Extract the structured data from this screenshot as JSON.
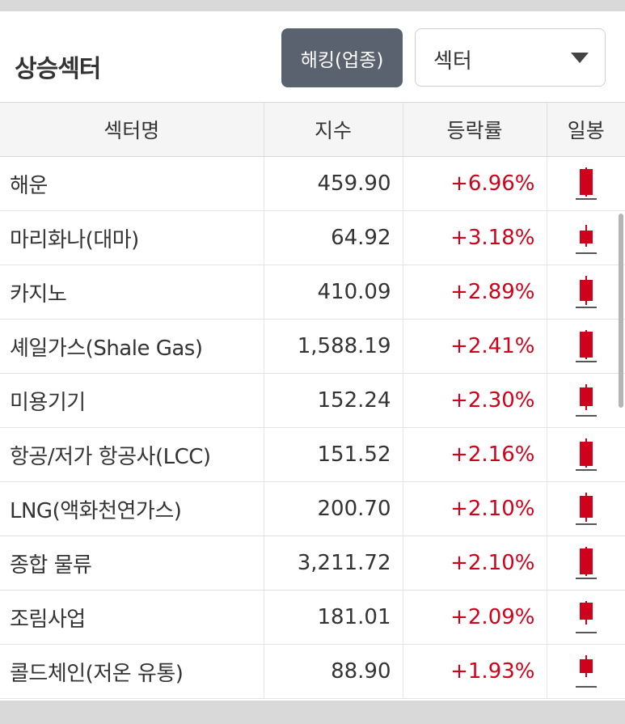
{
  "header": {
    "title": "상승섹터",
    "hedge_button_label": "해킹(업종)",
    "select_value": "섹터"
  },
  "table": {
    "columns": [
      "섹터명",
      "지수",
      "등락률",
      "일봉"
    ],
    "rows": [
      {
        "name": "해운",
        "index": "459.90",
        "change": "+6.96%",
        "candle": {
          "wick_top": 0.0,
          "body_top": 0.05,
          "body_bottom": 0.95,
          "wick_bottom": 1.0
        }
      },
      {
        "name": "마리화나(대마)",
        "index": "64.92",
        "change": "+3.18%",
        "candle": {
          "wick_top": 0.1,
          "body_top": 0.3,
          "body_bottom": 0.75,
          "wick_bottom": 0.85
        }
      },
      {
        "name": "카지노",
        "index": "410.09",
        "change": "+2.89%",
        "candle": {
          "wick_top": 0.0,
          "body_top": 0.15,
          "body_bottom": 0.85,
          "wick_bottom": 1.0
        }
      },
      {
        "name": "셰일가스(Shale Gas)",
        "index": "1,588.19",
        "change": "+2.41%",
        "candle": {
          "wick_top": 0.0,
          "body_top": 0.05,
          "body_bottom": 0.95,
          "wick_bottom": 1.0
        }
      },
      {
        "name": "미용기기",
        "index": "152.24",
        "change": "+2.30%",
        "candle": {
          "wick_top": 0.0,
          "body_top": 0.1,
          "body_bottom": 0.75,
          "wick_bottom": 0.9
        }
      },
      {
        "name": "항공/저가 항공사(LCC)",
        "index": "151.52",
        "change": "+2.16%",
        "candle": {
          "wick_top": 0.0,
          "body_top": 0.1,
          "body_bottom": 0.95,
          "wick_bottom": 1.0
        }
      },
      {
        "name": "LNG(액화천연가스)",
        "index": "200.70",
        "change": "+2.10%",
        "candle": {
          "wick_top": 0.0,
          "body_top": 0.1,
          "body_bottom": 0.85,
          "wick_bottom": 1.0
        }
      },
      {
        "name": "종합 물류",
        "index": "3,211.72",
        "change": "+2.10%",
        "candle": {
          "wick_top": 0.0,
          "body_top": 0.05,
          "body_bottom": 0.95,
          "wick_bottom": 1.0
        }
      },
      {
        "name": "조림사업",
        "index": "181.01",
        "change": "+2.09%",
        "candle": {
          "wick_top": 0.0,
          "body_top": 0.05,
          "body_bottom": 0.65,
          "wick_bottom": 0.8
        }
      },
      {
        "name": "콜드체인(저온 유통)",
        "index": "88.90",
        "change": "+1.93%",
        "candle": {
          "wick_top": 0.0,
          "body_top": 0.15,
          "body_bottom": 0.6,
          "wick_bottom": 0.75
        }
      }
    ]
  },
  "colors": {
    "up": "#d0021b",
    "button_bg": "#5a6270"
  }
}
